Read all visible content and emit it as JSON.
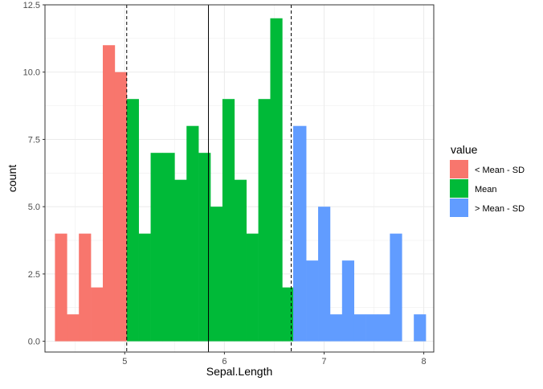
{
  "chart_data": {
    "type": "bar",
    "subtype": "histogram",
    "xlabel": "Sepal.Length",
    "ylabel": "count",
    "xlim": [
      4.2,
      8.1
    ],
    "ylim": [
      -0.4,
      12.5
    ],
    "x_ticks": [
      5,
      6,
      7,
      8
    ],
    "y_ticks": [
      0.0,
      2.5,
      5.0,
      7.5,
      10.0,
      12.5
    ],
    "x_tick_labels": [
      "5",
      "6",
      "7",
      "8"
    ],
    "y_tick_labels": [
      "0.0",
      "2.5",
      "5.0",
      "7.5",
      "10.0",
      "12.5"
    ],
    "grid": true,
    "bin_width": 0.12,
    "bins": [
      {
        "x0": 4.3,
        "x1": 4.42,
        "count": 4,
        "group": "low"
      },
      {
        "x0": 4.42,
        "x1": 4.54,
        "count": 1,
        "group": "low"
      },
      {
        "x0": 4.54,
        "x1": 4.66,
        "count": 4,
        "group": "low"
      },
      {
        "x0": 4.66,
        "x1": 4.78,
        "count": 2,
        "group": "low"
      },
      {
        "x0": 4.78,
        "x1": 4.9,
        "count": 11,
        "group": "low"
      },
      {
        "x0": 4.9,
        "x1": 5.02,
        "count": 10,
        "group": "low"
      },
      {
        "x0": 5.02,
        "x1": 5.14,
        "count": 9,
        "group": "mean"
      },
      {
        "x0": 5.14,
        "x1": 5.26,
        "count": 4,
        "group": "mean"
      },
      {
        "x0": 5.26,
        "x1": 5.38,
        "count": 7,
        "group": "mean"
      },
      {
        "x0": 5.38,
        "x1": 5.5,
        "count": 7,
        "group": "mean"
      },
      {
        "x0": 5.5,
        "x1": 5.62,
        "count": 6,
        "group": "mean"
      },
      {
        "x0": 5.62,
        "x1": 5.74,
        "count": 8,
        "group": "mean"
      },
      {
        "x0": 5.74,
        "x1": 5.86,
        "count": 7,
        "group": "mean"
      },
      {
        "x0": 5.86,
        "x1": 5.98,
        "count": 5,
        "group": "mean"
      },
      {
        "x0": 5.98,
        "x1": 6.1,
        "count": 9,
        "group": "mean"
      },
      {
        "x0": 6.1,
        "x1": 6.22,
        "count": 6,
        "group": "mean"
      },
      {
        "x0": 6.22,
        "x1": 6.34,
        "count": 4,
        "group": "mean"
      },
      {
        "x0": 6.34,
        "x1": 6.46,
        "count": 9,
        "group": "mean"
      },
      {
        "x0": 6.46,
        "x1": 6.58,
        "count": 12,
        "group": "mean"
      },
      {
        "x0": 6.58,
        "x1": 6.69,
        "count": 2,
        "group": "mean"
      },
      {
        "x0": 6.69,
        "x1": 6.82,
        "count": 8,
        "group": "high"
      },
      {
        "x0": 6.82,
        "x1": 6.94,
        "count": 3,
        "group": "high"
      },
      {
        "x0": 6.94,
        "x1": 7.06,
        "count": 5,
        "group": "high"
      },
      {
        "x0": 7.06,
        "x1": 7.18,
        "count": 1,
        "group": "high"
      },
      {
        "x0": 7.18,
        "x1": 7.3,
        "count": 3,
        "group": "high"
      },
      {
        "x0": 7.3,
        "x1": 7.42,
        "count": 1,
        "group": "high"
      },
      {
        "x0": 7.42,
        "x1": 7.54,
        "count": 1,
        "group": "high"
      },
      {
        "x0": 7.54,
        "x1": 7.66,
        "count": 1,
        "group": "high"
      },
      {
        "x0": 7.66,
        "x1": 7.78,
        "count": 4,
        "group": "high"
      },
      {
        "x0": 7.78,
        "x1": 7.9,
        "count": 0,
        "group": "high"
      },
      {
        "x0": 7.9,
        "x1": 8.02,
        "count": 1,
        "group": "high"
      }
    ],
    "groups": {
      "low": {
        "color": "#F8766D"
      },
      "mean": {
        "color": "#00BA38"
      },
      "high": {
        "color": "#619CFF"
      }
    },
    "reference_lines": [
      {
        "x": 5.84,
        "style": "solid",
        "color": "#000000"
      },
      {
        "x": 5.02,
        "style": "dashed",
        "color": "#000000"
      },
      {
        "x": 6.67,
        "style": "dashed",
        "color": "#000000"
      }
    ],
    "legend": {
      "title": "value",
      "position": "right",
      "entries": [
        {
          "label": "< Mean - SD",
          "group": "low"
        },
        {
          "label": "Mean",
          "group": "mean"
        },
        {
          "label": ">  Mean - SD",
          "group": "high"
        }
      ]
    }
  }
}
